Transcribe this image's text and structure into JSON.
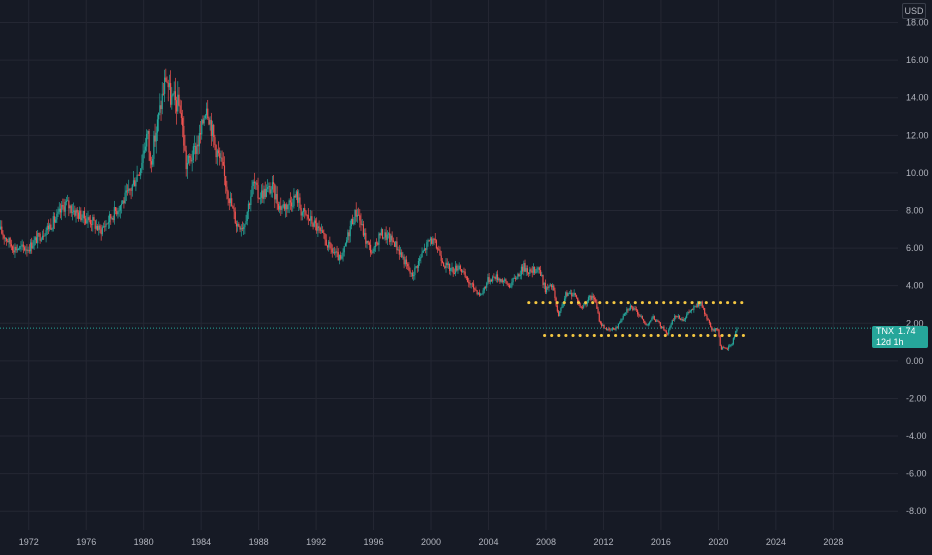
{
  "currency": "USD",
  "ticker": {
    "symbol": "TNX",
    "last_price": "1.74",
    "countdown": "12d 1h"
  },
  "colors": {
    "background": "#161a25",
    "grid": "#242733",
    "axis_text": "#b2b5be",
    "up": "#26a69a",
    "down": "#ef5350",
    "annotation": "#f5c842",
    "price_line": "#26a69a"
  },
  "chart_data": {
    "type": "candlestick",
    "title": "",
    "xlabel": "",
    "ylabel": "",
    "x_range": [
      1970,
      2032.5
    ],
    "y_range": [
      -9,
      19.2
    ],
    "x_ticks": [
      "1972",
      "1976",
      "1980",
      "1984",
      "1988",
      "1992",
      "1996",
      "2000",
      "2004",
      "2008",
      "2012",
      "2016",
      "2020",
      "2024",
      "2028"
    ],
    "y_ticks": [
      "18.00",
      "16.00",
      "14.00",
      "12.00",
      "10.00",
      "8.00",
      "6.00",
      "4.00",
      "2.00",
      "0.00",
      "-2.00",
      "-4.00",
      "-6.00",
      "-8.00"
    ],
    "grid": true,
    "last_value": 1.74,
    "series_key_points": [
      [
        1970.0,
        7.0
      ],
      [
        1971.0,
        6.0
      ],
      [
        1972.0,
        6.0
      ],
      [
        1973.0,
        6.8
      ],
      [
        1974.0,
        7.6
      ],
      [
        1974.6,
        8.4
      ],
      [
        1975.5,
        7.8
      ],
      [
        1976.5,
        7.4
      ],
      [
        1977.0,
        6.9
      ],
      [
        1978.0,
        7.9
      ],
      [
        1979.0,
        8.9
      ],
      [
        1979.8,
        10.3
      ],
      [
        1980.3,
        12.2
      ],
      [
        1980.5,
        10.5
      ],
      [
        1981.0,
        12.6
      ],
      [
        1981.6,
        15.2
      ],
      [
        1981.9,
        14.0
      ],
      [
        1982.6,
        13.5
      ],
      [
        1983.0,
        10.4
      ],
      [
        1983.5,
        11.0
      ],
      [
        1984.0,
        12.0
      ],
      [
        1984.4,
        13.8
      ],
      [
        1985.0,
        11.5
      ],
      [
        1985.5,
        10.3
      ],
      [
        1986.0,
        8.7
      ],
      [
        1986.5,
        7.3
      ],
      [
        1987.0,
        7.2
      ],
      [
        1987.7,
        9.5
      ],
      [
        1988.0,
        8.8
      ],
      [
        1988.5,
        9.0
      ],
      [
        1989.0,
        9.2
      ],
      [
        1989.5,
        8.2
      ],
      [
        1990.0,
        8.3
      ],
      [
        1990.7,
        8.8
      ],
      [
        1991.0,
        8.0
      ],
      [
        1992.0,
        7.2
      ],
      [
        1993.0,
        6.0
      ],
      [
        1993.8,
        5.3
      ],
      [
        1994.5,
        7.4
      ],
      [
        1994.9,
        8.0
      ],
      [
        1995.5,
        6.4
      ],
      [
        1996.0,
        5.7
      ],
      [
        1996.5,
        6.8
      ],
      [
        1997.0,
        6.6
      ],
      [
        1997.5,
        6.3
      ],
      [
        1998.0,
        5.6
      ],
      [
        1998.7,
        4.5
      ],
      [
        1999.0,
        5.0
      ],
      [
        1999.5,
        5.8
      ],
      [
        2000.0,
        6.5
      ],
      [
        2000.5,
        6.0
      ],
      [
        2001.0,
        5.1
      ],
      [
        2001.6,
        4.8
      ],
      [
        2002.0,
        5.1
      ],
      [
        2002.5,
        4.3
      ],
      [
        2003.0,
        3.9
      ],
      [
        2003.5,
        3.5
      ],
      [
        2004.0,
        4.3
      ],
      [
        2004.5,
        4.5
      ],
      [
        2005.0,
        4.3
      ],
      [
        2005.5,
        4.0
      ],
      [
        2006.0,
        4.5
      ],
      [
        2006.5,
        5.0
      ],
      [
        2007.0,
        4.7
      ],
      [
        2007.5,
        5.0
      ],
      [
        2008.0,
        3.8
      ],
      [
        2008.5,
        4.0
      ],
      [
        2008.9,
        2.3
      ],
      [
        2009.4,
        3.5
      ],
      [
        2010.0,
        3.6
      ],
      [
        2010.5,
        2.8
      ],
      [
        2011.0,
        3.3
      ],
      [
        2011.4,
        3.4
      ],
      [
        2011.8,
        2.0
      ],
      [
        2012.4,
        1.6
      ],
      [
        2013.0,
        1.8
      ],
      [
        2013.5,
        2.6
      ],
      [
        2013.9,
        2.9
      ],
      [
        2014.5,
        2.5
      ],
      [
        2015.0,
        1.9
      ],
      [
        2015.5,
        2.3
      ],
      [
        2016.0,
        1.9
      ],
      [
        2016.5,
        1.45
      ],
      [
        2017.0,
        2.4
      ],
      [
        2017.6,
        2.2
      ],
      [
        2018.0,
        2.6
      ],
      [
        2018.8,
        3.1
      ],
      [
        2019.0,
        2.7
      ],
      [
        2019.6,
        1.6
      ],
      [
        2020.0,
        1.7
      ],
      [
        2020.2,
        0.7
      ],
      [
        2020.6,
        0.6
      ],
      [
        2021.0,
        0.95
      ],
      [
        2021.3,
        1.74
      ]
    ],
    "annotations": [
      {
        "type": "dotted-horizontal-line",
        "y": 3.1,
        "x": [
          2006.8,
          2021.9
        ]
      },
      {
        "type": "dotted-horizontal-line",
        "y": 1.35,
        "x": [
          2007.9,
          2021.9
        ]
      }
    ]
  }
}
